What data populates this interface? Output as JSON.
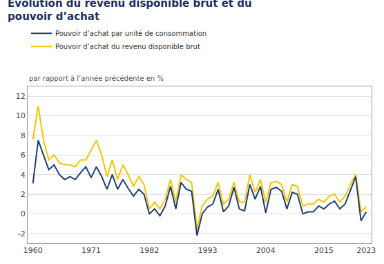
{
  "chart_data": {
    "type": "line",
    "title": "Évolution du revenu disponible brut et du\npouvoir d’achat",
    "ylabel": "par rapport à l’année précédente en %",
    "x": [
      1960,
      1961,
      1962,
      1963,
      1964,
      1965,
      1966,
      1967,
      1968,
      1969,
      1970,
      1971,
      1972,
      1973,
      1974,
      1975,
      1976,
      1977,
      1978,
      1979,
      1980,
      1981,
      1982,
      1983,
      1984,
      1985,
      1986,
      1987,
      1988,
      1989,
      1990,
      1991,
      1992,
      1993,
      1994,
      1995,
      1996,
      1997,
      1998,
      1999,
      2000,
      2001,
      2002,
      2003,
      2004,
      2005,
      2006,
      2007,
      2008,
      2009,
      2010,
      2011,
      2012,
      2013,
      2014,
      2015,
      2016,
      2017,
      2018,
      2019,
      2020,
      2021,
      2022,
      2023
    ],
    "series": [
      {
        "name": "Pouvoir d’achat par unité de consommation",
        "color": "#1c3f6e",
        "values": [
          3.1,
          7.5,
          6.0,
          4.5,
          5.0,
          4.0,
          3.5,
          3.8,
          3.5,
          4.2,
          4.8,
          3.7,
          4.8,
          3.8,
          2.5,
          4.0,
          2.5,
          3.5,
          2.6,
          1.8,
          2.5,
          2.0,
          0.0,
          0.5,
          -0.2,
          0.8,
          2.8,
          0.5,
          3.2,
          2.5,
          2.3,
          -2.2,
          0.0,
          0.7,
          1.0,
          2.5,
          0.2,
          0.8,
          2.7,
          0.5,
          0.3,
          3.0,
          1.5,
          2.8,
          0.1,
          2.5,
          2.7,
          2.3,
          0.5,
          2.2,
          2.0,
          0.0,
          0.2,
          0.2,
          0.8,
          0.5,
          1.0,
          1.3,
          0.5,
          1.0,
          2.4,
          3.8,
          -0.7,
          0.2
        ]
      },
      {
        "name": "Pouvoir d’achat du revenu disponible brut",
        "color": "#f5c400",
        "values": [
          7.6,
          11.0,
          7.5,
          5.5,
          6.0,
          5.2,
          5.0,
          5.0,
          4.8,
          5.5,
          5.5,
          6.5,
          7.5,
          6.0,
          3.8,
          5.5,
          3.5,
          5.0,
          4.0,
          2.8,
          3.8,
          3.0,
          0.5,
          1.2,
          0.5,
          1.5,
          3.5,
          1.2,
          4.0,
          3.5,
          3.2,
          -1.5,
          0.8,
          1.5,
          1.8,
          3.2,
          1.0,
          1.5,
          3.2,
          1.2,
          1.2,
          4.0,
          2.2,
          3.5,
          1.2,
          3.2,
          3.3,
          3.0,
          1.2,
          3.0,
          2.8,
          0.8,
          1.0,
          1.0,
          1.5,
          1.2,
          1.8,
          2.0,
          1.2,
          1.8,
          3.0,
          4.0,
          0.2,
          0.7
        ]
      }
    ],
    "xlim": [
      1959,
      2024
    ],
    "xticks": [
      1960,
      1971,
      1982,
      1993,
      2004,
      2015,
      2023
    ],
    "ylim": [
      -3,
      13
    ],
    "yticks": [
      -2,
      0,
      2,
      4,
      6,
      8,
      10,
      12
    ],
    "grid": "y",
    "legend": "upper left"
  }
}
